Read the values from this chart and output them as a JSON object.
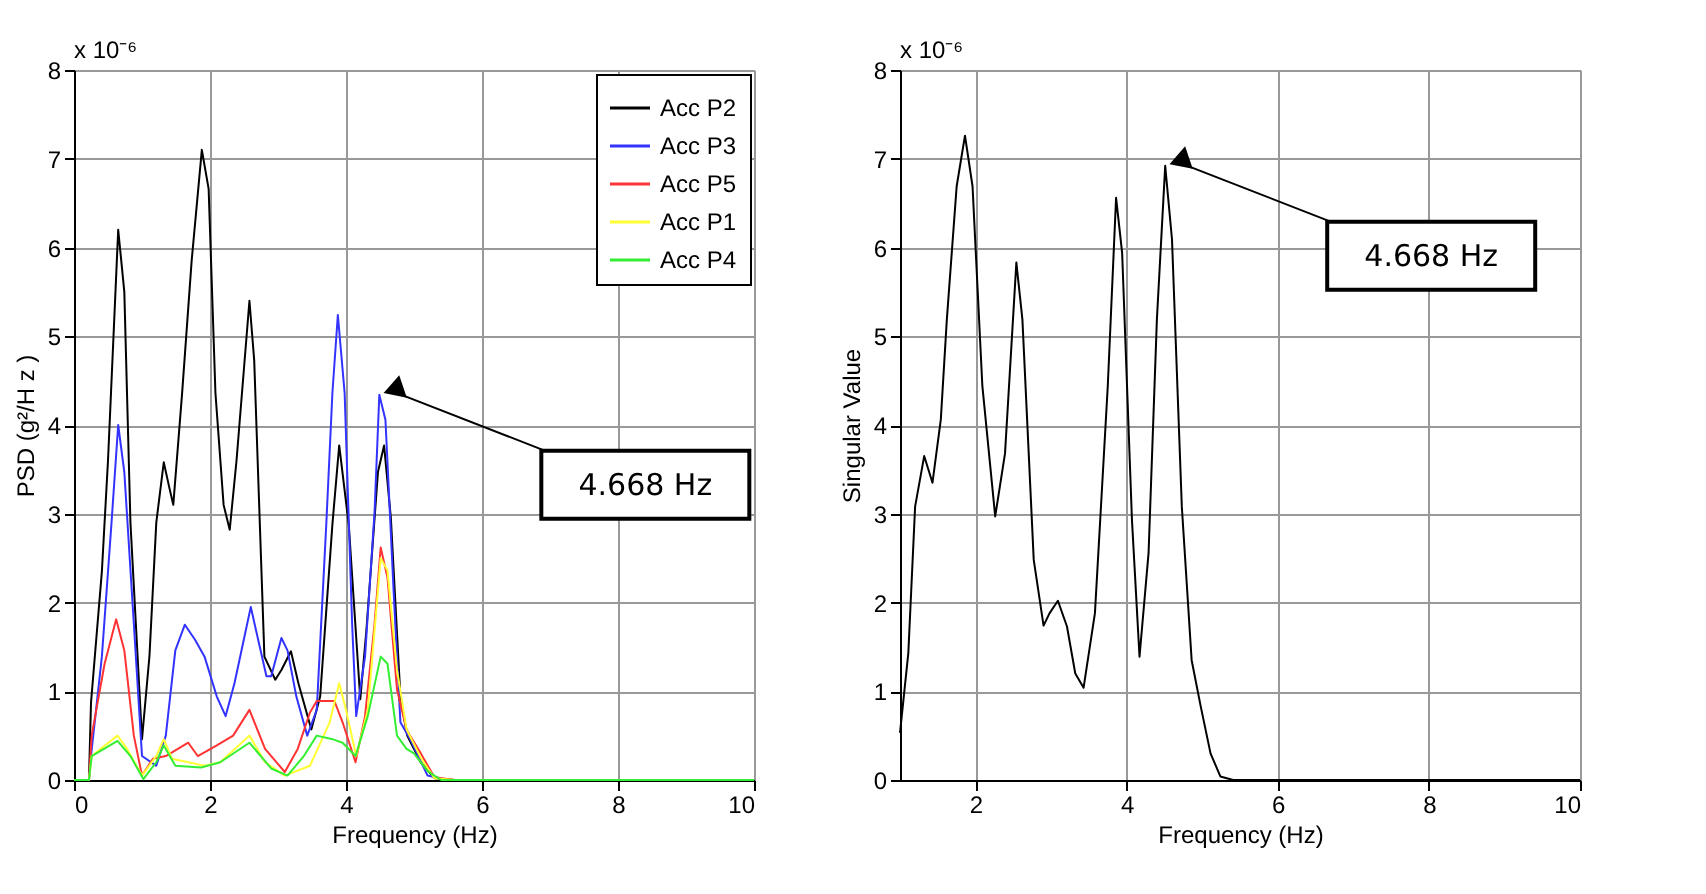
{
  "chart_data": [
    {
      "type": "line",
      "xlabel": "Frequency (Hz)",
      "ylabel": "PSD (g²/H z )",
      "xlim": [
        0,
        10
      ],
      "ylim": [
        0,
        8
      ],
      "xticks": [
        0,
        2,
        4,
        6,
        8,
        10
      ],
      "yticks": [
        0,
        1,
        2,
        3,
        4,
        5,
        6,
        7,
        8
      ],
      "grid": true,
      "legend": "top right",
      "marker": "none",
      "line_style": "solid",
      "annotations": [
        "x 10⁻⁶",
        {
          "text": "4.668 Hz",
          "x": 4.49,
          "y": 4.34
        }
      ],
      "series": [
        {
          "name": "Acc P2",
          "color": "#000000",
          "x": [
            0,
            0.22,
            0.25,
            0.41,
            0.5,
            0.65,
            0.74,
            0.83,
            1.0,
            1.11,
            1.21,
            1.32,
            1.4,
            1.46,
            1.59,
            1.73,
            1.88,
            1.98,
            2.08,
            2.2,
            2.29,
            2.39,
            2.58,
            2.65,
            2.8,
            2.96,
            3.05,
            3.19,
            3.3,
            3.49,
            3.62,
            3.8,
            3.9,
            4.04,
            4.21,
            4.3,
            4.47,
            4.56,
            4.66,
            4.8,
            4.9,
            5.1,
            5.3,
            5.6,
            10
          ],
          "values": [
            0,
            0,
            0.87,
            2.35,
            3.6,
            6.2,
            5.5,
            2.9,
            0.46,
            1.4,
            2.9,
            3.58,
            3.3,
            3.1,
            4.36,
            5.85,
            7.1,
            6.66,
            4.36,
            3.1,
            2.82,
            3.6,
            5.4,
            4.73,
            1.39,
            1.13,
            1.24,
            1.45,
            1.09,
            0.57,
            0.94,
            2.88,
            3.77,
            2.88,
            0.91,
            1.69,
            3.47,
            3.77,
            2.95,
            0.94,
            0.5,
            0.2,
            0.02,
            0,
            0
          ]
        },
        {
          "name": "Acc P3",
          "color": "#3333ff",
          "x": [
            0,
            0.22,
            0.25,
            0.41,
            0.55,
            0.65,
            0.74,
            0.88,
            1.0,
            1.21,
            1.35,
            1.49,
            1.63,
            1.78,
            1.92,
            2.1,
            2.23,
            2.36,
            2.6,
            2.72,
            2.83,
            2.9,
            3.05,
            3.14,
            3.27,
            3.43,
            3.57,
            3.71,
            3.8,
            3.88,
            3.98,
            4.09,
            4.15,
            4.28,
            4.42,
            4.49,
            4.58,
            4.7,
            4.8,
            4.95,
            5.2,
            5.5,
            10
          ],
          "values": [
            0,
            0,
            0.27,
            1.39,
            2.88,
            4.0,
            3.47,
            1.76,
            0.27,
            0.16,
            0.5,
            1.46,
            1.75,
            1.58,
            1.39,
            0.94,
            0.72,
            1.09,
            1.95,
            1.54,
            1.17,
            1.17,
            1.6,
            1.46,
            0.94,
            0.5,
            0.79,
            2.88,
            4.36,
            5.24,
            4.36,
            1.76,
            0.72,
            1.39,
            3.02,
            4.34,
            4.06,
            2.13,
            0.65,
            0.45,
            0.05,
            0,
            0
          ]
        },
        {
          "name": "Acc P5",
          "color": "#ff3333",
          "x": [
            0,
            0.22,
            0.26,
            0.45,
            0.62,
            0.74,
            0.88,
            1.0,
            1.16,
            1.35,
            1.68,
            1.82,
            2.1,
            2.34,
            2.58,
            2.81,
            3.1,
            3.29,
            3.47,
            3.57,
            3.83,
            3.95,
            4.14,
            4.28,
            4.42,
            4.51,
            4.61,
            4.75,
            4.89,
            4.94,
            5.1,
            5.3,
            5.6,
            10
          ],
          "values": [
            0,
            0,
            0.5,
            1.31,
            1.81,
            1.46,
            0.5,
            0.05,
            0.24,
            0.27,
            0.42,
            0.27,
            0.39,
            0.5,
            0.79,
            0.35,
            0.09,
            0.35,
            0.76,
            0.89,
            0.89,
            0.65,
            0.2,
            0.72,
            1.76,
            2.62,
            2.28,
            1.02,
            0.57,
            0.5,
            0.3,
            0.03,
            0,
            0
          ]
        },
        {
          "name": "Acc P1",
          "color": "#ffff33",
          "x": [
            0,
            0.22,
            0.26,
            0.64,
            0.78,
            1.0,
            1.21,
            1.32,
            1.44,
            1.68,
            1.92,
            2.15,
            2.58,
            2.81,
            3.1,
            3.47,
            3.76,
            3.9,
            4.0,
            4.15,
            4.32,
            4.51,
            4.61,
            4.75,
            4.89,
            5.1,
            5.3,
            5.6,
            10
          ],
          "values": [
            0,
            0,
            0.27,
            0.5,
            0.35,
            0.05,
            0.27,
            0.46,
            0.24,
            0.2,
            0.16,
            0.2,
            0.5,
            0.2,
            0.05,
            0.16,
            0.65,
            1.09,
            0.79,
            0.27,
            0.79,
            2.5,
            2.36,
            1.24,
            0.57,
            0.25,
            0.02,
            0,
            0
          ]
        },
        {
          "name": "Acc P4",
          "color": "#33ee33",
          "x": [
            0,
            0.22,
            0.26,
            0.64,
            0.83,
            1.02,
            1.21,
            1.32,
            1.49,
            1.87,
            2.15,
            2.58,
            2.9,
            3.14,
            3.38,
            3.57,
            3.8,
            3.95,
            4.14,
            4.32,
            4.51,
            4.61,
            4.75,
            4.89,
            5.0,
            5.2,
            5.4,
            10
          ],
          "values": [
            0,
            0,
            0.27,
            0.44,
            0.27,
            0.01,
            0.2,
            0.39,
            0.16,
            0.14,
            0.2,
            0.42,
            0.13,
            0.05,
            0.27,
            0.5,
            0.46,
            0.42,
            0.27,
            0.72,
            1.39,
            1.31,
            0.5,
            0.35,
            0.3,
            0.1,
            0,
            0
          ]
        }
      ]
    },
    {
      "type": "line",
      "xlabel": "Frequency (Hz)",
      "ylabel": "Singular Value",
      "xlim": [
        1,
        10
      ],
      "ylim": [
        0,
        8
      ],
      "xticks": [
        2,
        4,
        6,
        8,
        10
      ],
      "yticks": [
        0,
        1,
        2,
        3,
        4,
        5,
        6,
        7,
        8
      ],
      "grid": true,
      "legend": false,
      "marker": "none",
      "line_style": "solid",
      "annotations": [
        "x 10⁻⁶",
        {
          "text": "4.668 Hz",
          "x": 4.51,
          "y": 6.92
        }
      ],
      "series": [
        {
          "color": "#000000",
          "x": [
            1.0,
            1.11,
            1.2,
            1.32,
            1.43,
            1.54,
            1.62,
            1.75,
            1.86,
            1.96,
            2.09,
            2.26,
            2.39,
            2.54,
            2.62,
            2.77,
            2.9,
            2.98,
            3.09,
            3.21,
            3.32,
            3.43,
            3.58,
            3.75,
            3.86,
            3.94,
            4.07,
            4.17,
            4.29,
            4.4,
            4.51,
            4.6,
            4.73,
            4.86,
            4.98,
            5.11,
            5.24,
            5.41,
            10
          ],
          "values": [
            0.53,
            1.43,
            3.08,
            3.65,
            3.35,
            4.06,
            5.19,
            6.69,
            7.26,
            6.69,
            4.44,
            2.97,
            3.68,
            5.83,
            5.19,
            2.48,
            1.74,
            1.88,
            2.02,
            1.73,
            1.2,
            1.04,
            1.88,
            4.44,
            6.56,
            5.94,
            2.93,
            1.39,
            2.56,
            5.19,
            6.92,
            6.09,
            3.08,
            1.35,
            0.83,
            0.3,
            0.04,
            0,
            0
          ]
        }
      ]
    }
  ]
}
